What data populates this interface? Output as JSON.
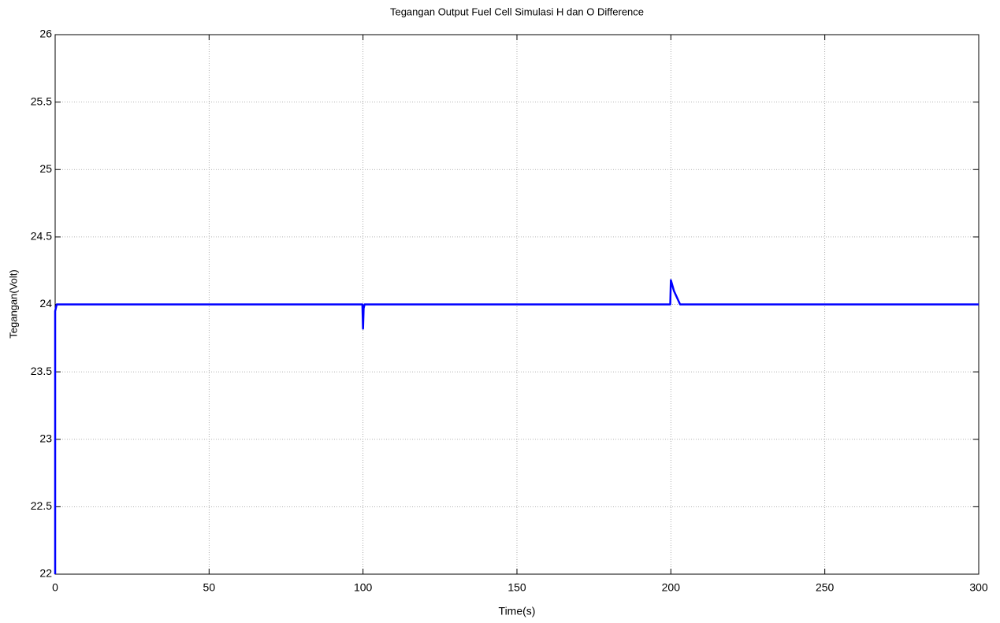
{
  "chart_data": {
    "type": "line",
    "title": "Tegangan Output Fuel Cell Simulasi H dan O Difference",
    "x_label": "Time(s)",
    "y_label": "Tegangan(Volt)",
    "x": [
      0,
      0,
      0.5,
      99.8,
      100,
      100.2,
      100.5,
      199.8,
      200,
      201,
      203,
      300
    ],
    "series": [
      {
        "color": "#0000ff",
        "values": [
          22,
          23.95,
          24,
          24,
          23.82,
          23.97,
          24,
          24,
          24.18,
          24.1,
          24,
          24
        ]
      }
    ],
    "xlim": [
      0,
      300
    ],
    "xticks": [
      0,
      50,
      100,
      150,
      200,
      250,
      300
    ],
    "ylim": [
      22,
      26
    ],
    "yticks": [
      22,
      22.5,
      23,
      23.5,
      24,
      24.5,
      25,
      25.5,
      26
    ],
    "grid": true
  }
}
